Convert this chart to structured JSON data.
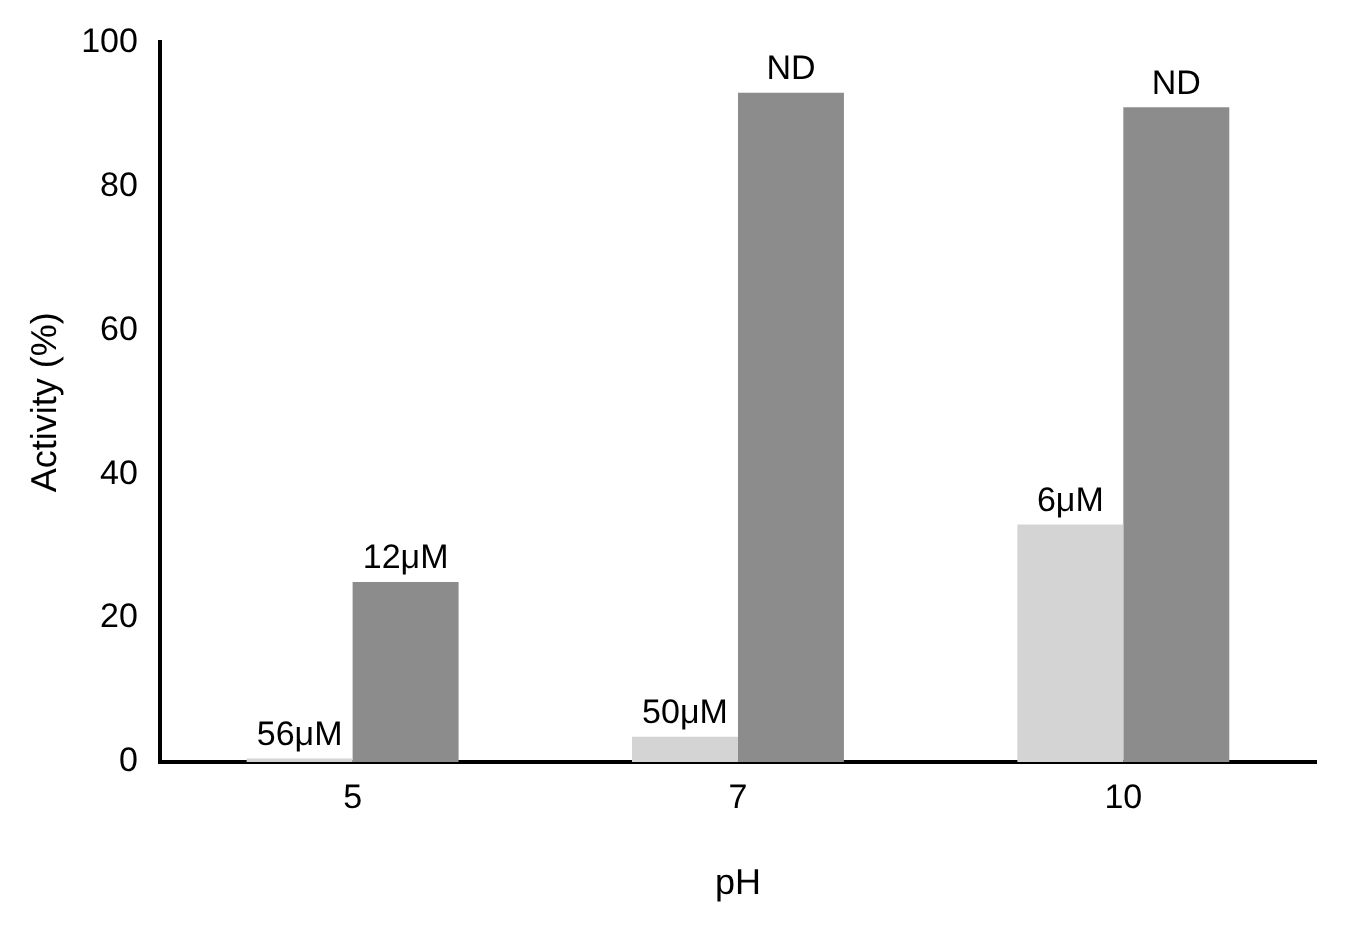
{
  "chart_data": {
    "type": "bar",
    "xlabel": "pH",
    "ylabel": "Activity (%)",
    "categories": [
      "5",
      "7",
      "10"
    ],
    "series": [
      {
        "color": "#d4d4d4",
        "values": [
          0.5,
          3.5,
          33
        ]
      },
      {
        "color": "#8c8c8c",
        "values": [
          25,
          93,
          91
        ]
      }
    ],
    "annotations": [
      {
        "text": "56μM",
        "x": "5",
        "y": 0.5
      },
      {
        "text": "12μM",
        "x": "5",
        "y": 25
      },
      {
        "text": "50μM",
        "x": "7",
        "y": 3.5
      },
      {
        "text": "ND",
        "x": "7",
        "y": 93
      },
      {
        "text": "6μM",
        "x": "10",
        "y": 33
      },
      {
        "text": "ND",
        "x": "10",
        "y": 91
      }
    ],
    "ylim": [
      0,
      100
    ],
    "yticks": [
      0,
      20,
      40,
      60,
      80,
      100
    ],
    "grid": false,
    "legend": false
  }
}
